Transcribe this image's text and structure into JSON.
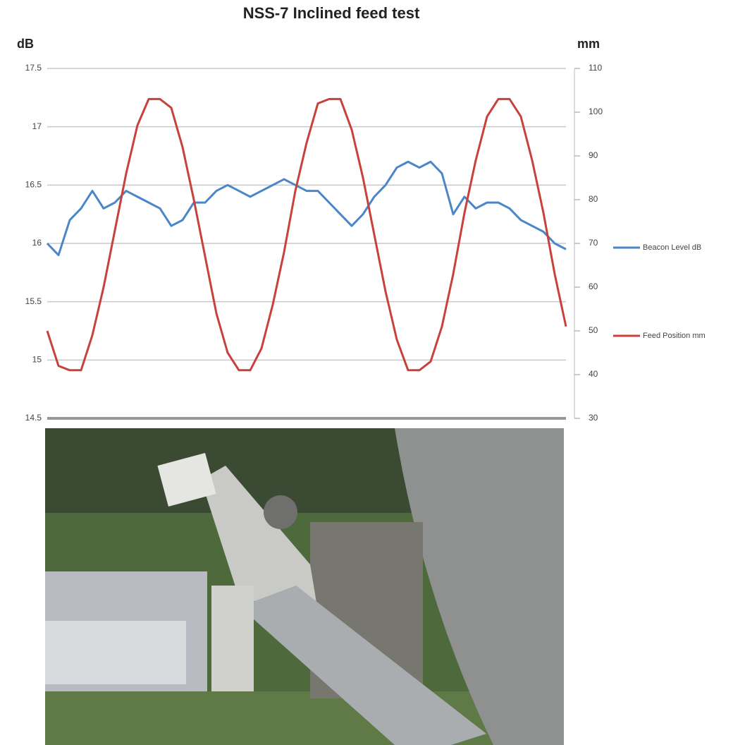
{
  "chart_data": {
    "type": "line",
    "title": "NSS-7 Inclined feed test",
    "y_label": "dB",
    "y2_label": "mm",
    "ylim": [
      14.5,
      17.5
    ],
    "yticks": [
      14.5,
      15,
      15.5,
      16,
      16.5,
      17,
      17.5
    ],
    "y2lim": [
      30,
      110
    ],
    "y2ticks": [
      30,
      40,
      50,
      60,
      70,
      80,
      90,
      100,
      110
    ],
    "grid": true,
    "legend": "right",
    "series": [
      {
        "name": "Beacon Level dB",
        "color": "#4a86c8",
        "values": [
          16.0,
          15.9,
          16.2,
          16.3,
          16.45,
          16.3,
          16.35,
          16.45,
          16.4,
          16.35,
          16.3,
          16.15,
          16.2,
          16.35,
          16.35,
          16.45,
          16.5,
          16.45,
          16.4,
          16.45,
          16.5,
          16.55,
          16.5,
          16.45,
          16.45,
          16.35,
          16.25,
          16.15,
          16.25,
          16.4,
          16.5,
          16.65,
          16.7,
          16.65,
          16.7,
          16.6,
          16.25,
          16.4,
          16.3,
          16.35,
          16.35,
          16.3,
          16.2,
          16.15,
          16.1,
          16.0,
          15.95
        ]
      },
      {
        "name": "Feed Position mm",
        "color": "#c8413b",
        "axis": "y2",
        "values": [
          50,
          42,
          41,
          41,
          49,
          60,
          73,
          86,
          97,
          103,
          103,
          101,
          92,
          80,
          67,
          54,
          45,
          41,
          41,
          46,
          56,
          68,
          82,
          93,
          102,
          103,
          103,
          96,
          85,
          72,
          59,
          48,
          41,
          41,
          43,
          51,
          63,
          77,
          89,
          99,
          103,
          103,
          99,
          89,
          77,
          63,
          51
        ]
      }
    ]
  }
}
